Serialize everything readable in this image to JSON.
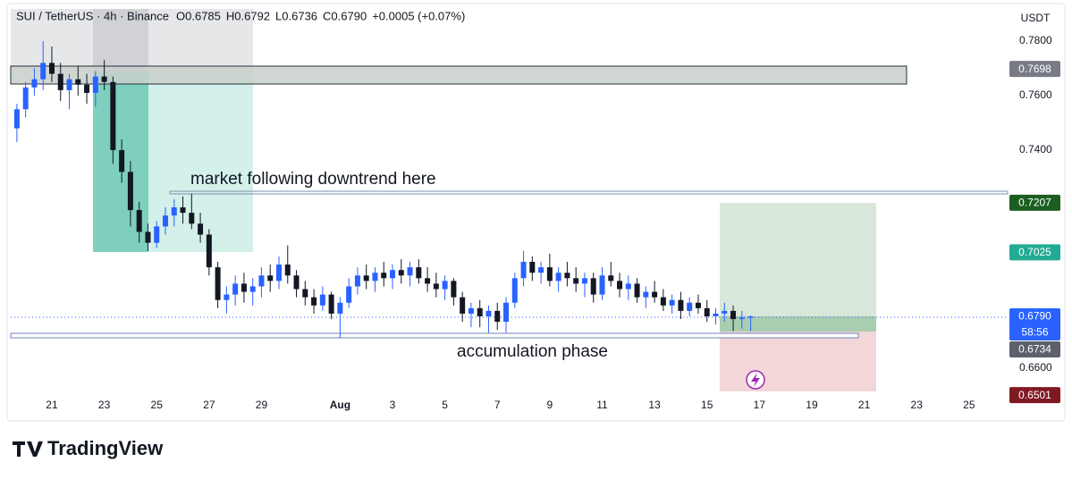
{
  "chart_data": {
    "type": "candlestick",
    "title": "SUI / TetherUS · 4h · Binance",
    "legend_values": [
      "O0.6785",
      "H0.6792",
      "L0.6736",
      "C0.6790",
      "+0.0005 (+0.07%)"
    ],
    "currency": "USDT",
    "annotations": [
      "market following downtrend here",
      "accumulation phase"
    ],
    "brand": "TradingView",
    "up_color": "#2962ff",
    "down_color": "#131722",
    "grid": false,
    "ylim": [
      0.6426,
      0.7918
    ],
    "yticks": [
      {
        "value": 0.78,
        "label": "0.7800"
      },
      {
        "value": 0.76,
        "label": "0.7600"
      },
      {
        "value": 0.74,
        "label": "0.7400"
      },
      {
        "value": 0.66,
        "label": "0.6600"
      }
    ],
    "price_labels": [
      {
        "value": 0.7698,
        "color": "#787b86"
      },
      {
        "value": 0.7207,
        "color": "#1b5e20"
      },
      {
        "value": 0.7025,
        "color": "#22ab94"
      },
      {
        "value": 0.679,
        "label": "0.6790",
        "color": "#2962ff",
        "countdown": "58:56"
      },
      {
        "value": 0.6734,
        "color": "#5d606b"
      },
      {
        "value": 0.6501,
        "color": "#801922"
      }
    ],
    "categories": [
      null,
      null,
      null,
      null,
      "21",
      null,
      null,
      null,
      null,
      null,
      "23",
      null,
      null,
      null,
      null,
      null,
      "25",
      null,
      null,
      null,
      null,
      null,
      "27",
      null,
      null,
      null,
      null,
      null,
      "29",
      null,
      null,
      null,
      null,
      null,
      null,
      null,
      null,
      "Aug",
      null,
      null,
      null,
      null,
      null,
      "3",
      null,
      null,
      null,
      null,
      null,
      "5",
      null,
      null,
      null,
      null,
      null,
      "7",
      null,
      null,
      null,
      null,
      null,
      "9",
      null,
      null,
      null,
      null,
      null,
      "11",
      null,
      null,
      null,
      null,
      null,
      "13",
      null,
      null,
      null,
      null,
      null,
      "15",
      null,
      null,
      null,
      null,
      null,
      "17",
      null,
      null,
      null,
      null,
      null,
      "19",
      null,
      null,
      null,
      null,
      null,
      "21",
      null,
      null,
      null,
      null,
      null,
      "23",
      null,
      null,
      null,
      null,
      null,
      "25",
      null,
      null
    ],
    "open": [
      0.748,
      0.755,
      0.763,
      0.766,
      0.772,
      0.768,
      0.762,
      0.766,
      0.764,
      0.761,
      0.767,
      0.765,
      0.74,
      0.732,
      0.718,
      0.71,
      0.706,
      0.712,
      0.716,
      0.719,
      0.717,
      0.713,
      0.709,
      0.697,
      0.685,
      0.687,
      0.691,
      0.688,
      0.69,
      0.694,
      0.692,
      0.698,
      0.694,
      0.689,
      0.686,
      0.683,
      0.687,
      0.68,
      0.684,
      0.69,
      0.694,
      0.692,
      0.695,
      0.693,
      0.696,
      0.694,
      0.697,
      0.693,
      0.691,
      0.689,
      0.692,
      0.686,
      0.68,
      0.682,
      0.679,
      0.681,
      0.677,
      0.684,
      0.693,
      0.699,
      0.695,
      0.697,
      0.692,
      0.695,
      0.693,
      0.691,
      0.693,
      0.687,
      0.694,
      0.692,
      0.689,
      0.691,
      0.686,
      0.688,
      0.686,
      0.683,
      0.685,
      0.681,
      0.684,
      0.682,
      0.679,
      0.68,
      0.681,
      0.678,
      0.6785,
      null,
      null,
      null,
      null,
      null,
      null,
      null,
      null,
      null,
      null,
      null,
      null,
      null,
      null,
      null,
      null,
      null,
      null,
      null,
      null,
      null,
      null,
      null,
      null,
      null,
      null,
      null
    ],
    "high": [
      0.757,
      0.765,
      0.77,
      0.78,
      0.778,
      0.772,
      0.768,
      0.771,
      0.768,
      0.769,
      0.773,
      0.767,
      0.744,
      0.736,
      0.721,
      0.713,
      0.714,
      0.719,
      0.722,
      0.723,
      0.724,
      0.717,
      0.711,
      0.699,
      0.69,
      0.694,
      0.695,
      0.693,
      0.697,
      0.698,
      0.701,
      0.705,
      0.696,
      0.692,
      0.689,
      0.69,
      0.688,
      0.686,
      0.693,
      0.697,
      0.698,
      0.697,
      0.699,
      0.698,
      0.7,
      0.699,
      0.7,
      0.697,
      0.695,
      0.694,
      0.693,
      0.688,
      0.684,
      0.685,
      0.683,
      0.684,
      0.686,
      0.695,
      0.703,
      0.701,
      0.699,
      0.702,
      0.697,
      0.699,
      0.697,
      0.695,
      0.695,
      0.697,
      0.699,
      0.695,
      0.694,
      0.693,
      0.69,
      0.692,
      0.689,
      0.687,
      0.688,
      0.686,
      0.687,
      0.685,
      0.682,
      0.684,
      0.683,
      0.681,
      0.6792,
      null,
      null,
      null,
      null,
      null,
      null,
      null,
      null,
      null,
      null,
      null,
      null,
      null,
      null,
      null,
      null,
      null,
      null,
      null,
      null,
      null,
      null,
      null,
      null,
      null,
      null,
      null
    ],
    "low": [
      0.743,
      0.752,
      0.76,
      0.762,
      0.765,
      0.758,
      0.755,
      0.76,
      0.757,
      0.756,
      0.762,
      0.735,
      0.728,
      0.712,
      0.706,
      0.703,
      0.704,
      0.709,
      0.712,
      0.713,
      0.711,
      0.706,
      0.694,
      0.682,
      0.68,
      0.683,
      0.684,
      0.683,
      0.686,
      0.688,
      0.689,
      0.691,
      0.686,
      0.683,
      0.68,
      0.681,
      0.678,
      0.671,
      0.682,
      0.687,
      0.689,
      0.688,
      0.69,
      0.689,
      0.691,
      0.69,
      0.691,
      0.688,
      0.686,
      0.685,
      0.683,
      0.677,
      0.675,
      0.675,
      0.673,
      0.674,
      0.673,
      0.682,
      0.69,
      0.692,
      0.691,
      0.69,
      0.688,
      0.69,
      0.688,
      0.686,
      0.684,
      0.685,
      0.69,
      0.686,
      0.685,
      0.684,
      0.682,
      0.684,
      0.681,
      0.68,
      0.678,
      0.679,
      0.68,
      0.677,
      0.676,
      0.677,
      0.6736,
      0.6745,
      0.6736,
      null,
      null,
      null,
      null,
      null,
      null,
      null,
      null,
      null,
      null,
      null,
      null,
      null,
      null,
      null,
      null,
      null,
      null,
      null,
      null,
      null,
      null,
      null,
      null,
      null,
      null,
      null
    ],
    "close": [
      0.755,
      0.763,
      0.766,
      0.772,
      0.768,
      0.762,
      0.766,
      0.764,
      0.761,
      0.767,
      0.765,
      0.74,
      0.732,
      0.718,
      0.71,
      0.706,
      0.712,
      0.716,
      0.719,
      0.717,
      0.713,
      0.709,
      0.697,
      0.685,
      0.687,
      0.691,
      0.688,
      0.69,
      0.694,
      0.692,
      0.698,
      0.694,
      0.689,
      0.686,
      0.683,
      0.687,
      0.68,
      0.684,
      0.69,
      0.694,
      0.692,
      0.695,
      0.693,
      0.696,
      0.694,
      0.697,
      0.693,
      0.691,
      0.689,
      0.692,
      0.686,
      0.68,
      0.682,
      0.679,
      0.681,
      0.677,
      0.684,
      0.693,
      0.699,
      0.695,
      0.697,
      0.692,
      0.695,
      0.693,
      0.691,
      0.693,
      0.687,
      0.694,
      0.692,
      0.689,
      0.691,
      0.686,
      0.688,
      0.686,
      0.683,
      0.685,
      0.681,
      0.684,
      0.682,
      0.679,
      0.68,
      0.681,
      0.678,
      0.6785,
      0.679,
      null,
      null,
      null,
      null,
      null,
      null,
      null,
      null,
      null,
      null,
      null,
      null,
      null,
      null,
      null,
      null,
      null,
      null,
      null,
      null,
      null,
      null,
      null,
      null,
      null,
      null,
      null
    ]
  }
}
